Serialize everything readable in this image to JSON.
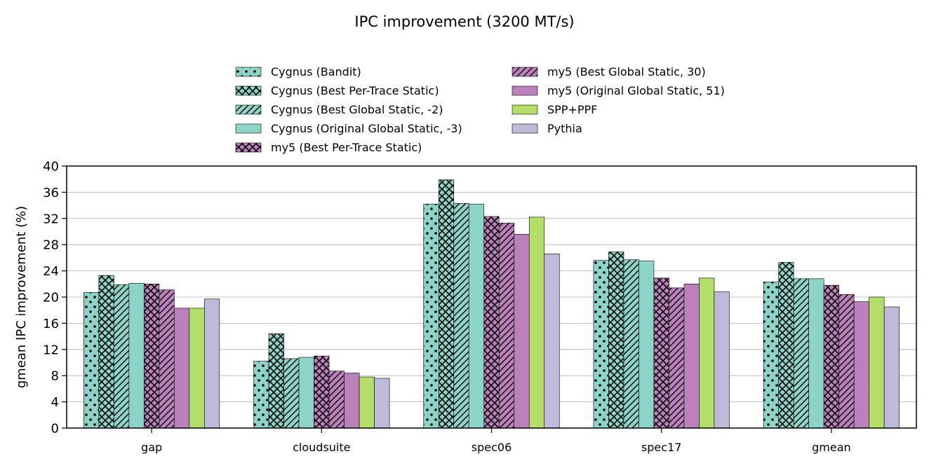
{
  "chart_data": {
    "type": "bar",
    "title": "IPC improvement (3200 MT/s)",
    "xlabel": "",
    "ylabel": "gmean IPC improvement (%)",
    "ylim": [
      0,
      40
    ],
    "yticks": [
      0,
      4,
      8,
      12,
      16,
      20,
      24,
      28,
      32,
      36,
      40
    ],
    "grid": "horizontal",
    "legend_position": "top",
    "categories": [
      "gap",
      "cloudsuite",
      "spec06",
      "spec17",
      "gmean"
    ],
    "series": [
      {
        "name": "Cygnus (Bandit)",
        "color": "#8dd3c7",
        "pattern": "dots",
        "values": [
          20.7,
          10.2,
          34.2,
          25.6,
          22.3
        ]
      },
      {
        "name": "Cygnus (Best Per-Trace Static)",
        "color": "#8dd3c7",
        "pattern": "crosshatch",
        "values": [
          23.3,
          14.4,
          37.9,
          26.9,
          25.3
        ]
      },
      {
        "name": "Cygnus (Best Global Static, -2)",
        "color": "#8dd3c7",
        "pattern": "diagonal",
        "values": [
          21.9,
          10.6,
          34.3,
          25.7,
          22.8
        ]
      },
      {
        "name": "Cygnus (Original Global Static, -3)",
        "color": "#8dd3c7",
        "pattern": "none",
        "values": [
          22.1,
          10.8,
          34.2,
          25.5,
          22.8
        ]
      },
      {
        "name": "my5 (Best Per-Trace Static)",
        "color": "#bc80bd",
        "pattern": "crosshatch",
        "values": [
          22.0,
          11.0,
          32.3,
          22.9,
          21.8
        ]
      },
      {
        "name": "my5 (Best Global Static, 30)",
        "color": "#bc80bd",
        "pattern": "diagonal",
        "values": [
          21.1,
          8.7,
          31.3,
          21.4,
          20.4
        ]
      },
      {
        "name": "my5 (Original Global Static, 51)",
        "color": "#bc80bd",
        "pattern": "none",
        "values": [
          18.3,
          8.4,
          29.6,
          22.0,
          19.3
        ]
      },
      {
        "name": "SPP+PPF",
        "color": "#b3de69",
        "pattern": "none",
        "values": [
          18.3,
          7.8,
          32.2,
          22.9,
          20.0
        ]
      },
      {
        "name": "Pythia",
        "color": "#bebada",
        "pattern": "none",
        "values": [
          19.7,
          7.6,
          26.6,
          20.8,
          18.5
        ]
      }
    ]
  }
}
